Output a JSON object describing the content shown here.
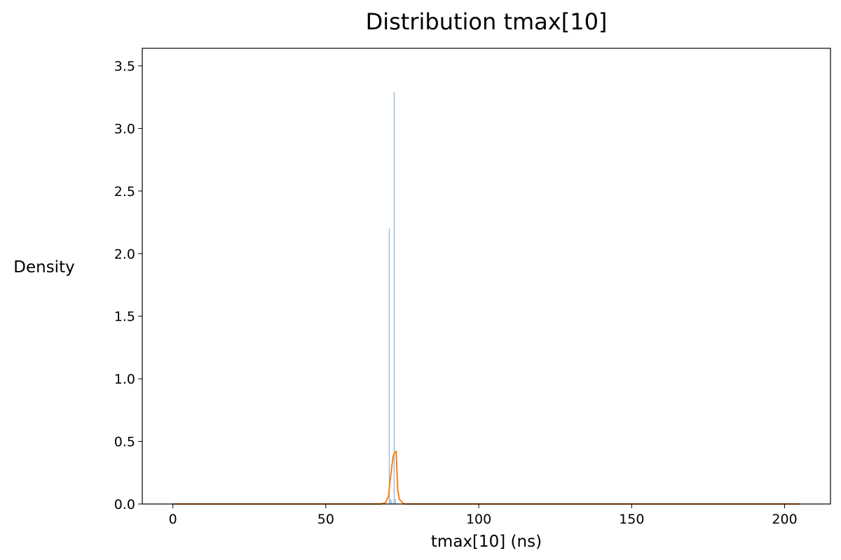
{
  "chart_data": {
    "type": "histogram",
    "title": "Distribution tmax[10]",
    "xlabel": "tmax[10] (ns)",
    "ylabel": "Density",
    "xlim": [
      -10,
      215
    ],
    "ylim": [
      0,
      3.64
    ],
    "xticks": [
      0,
      50,
      100,
      150,
      200
    ],
    "yticks": [
      0.0,
      0.5,
      1.0,
      1.5,
      2.0,
      2.5,
      3.0,
      3.5
    ],
    "xtick_labels": [
      "0",
      "50",
      "100",
      "150",
      "200"
    ],
    "ytick_labels": [
      "0.0",
      "0.5",
      "1.0",
      "1.5",
      "2.0",
      "2.5",
      "3.0",
      "3.5"
    ],
    "grid": false,
    "histogram": {
      "color": "#1f77b4",
      "bars": [
        {
          "x0": 70.6,
          "x1": 70.9,
          "value": 2.2
        },
        {
          "x0": 71.0,
          "x1": 71.3,
          "value": 0.04
        },
        {
          "x0": 71.4,
          "x1": 71.7,
          "value": 0.03
        },
        {
          "x0": 72.2,
          "x1": 72.5,
          "value": 3.29
        },
        {
          "x0": 72.6,
          "x1": 72.9,
          "value": 0.04
        }
      ]
    },
    "kde": {
      "color": "#ff7f0e",
      "x": [
        0,
        68,
        69.5,
        70.5,
        71.0,
        72.0,
        72.5,
        73.0,
        73.5,
        74.0,
        75.5,
        205
      ],
      "y": [
        0,
        0,
        0.01,
        0.06,
        0.18,
        0.38,
        0.41,
        0.42,
        0.12,
        0.04,
        0,
        0
      ]
    }
  }
}
